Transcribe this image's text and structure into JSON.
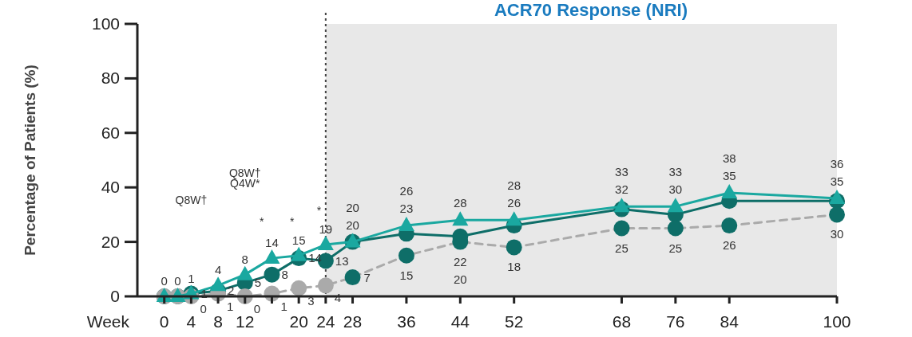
{
  "chart_data": {
    "type": "line",
    "title": "ACR70 Response (NRI)",
    "xlabel": "Week",
    "ylabel": "Percentage of Patients (%)",
    "x": [
      0,
      2,
      4,
      8,
      12,
      16,
      20,
      24,
      28,
      36,
      44,
      52,
      68,
      76,
      84,
      100
    ],
    "xlim": [
      -4,
      100
    ],
    "xticks": [
      0,
      4,
      8,
      12,
      {
        "value": 16,
        "label": null
      },
      20,
      24,
      28,
      36,
      44,
      52,
      68,
      76,
      84,
      100
    ],
    "ylim": [
      0,
      100
    ],
    "yticks": [
      0,
      20,
      40,
      60,
      80,
      100
    ],
    "grid": false,
    "series": [
      {
        "color": "#1aa8a0",
        "marker": "triangle",
        "line_style": "solid",
        "values": [
          0,
          0,
          1,
          4,
          8,
          14,
          15,
          19,
          20,
          26,
          28,
          28,
          33,
          33,
          38,
          36
        ],
        "value_labels": [
          "0",
          "0",
          "1",
          "4",
          "8",
          "14",
          "15",
          "19",
          "20",
          "26",
          "28",
          "28",
          "33",
          "33",
          "38",
          "36"
        ]
      },
      {
        "color": "#0e6e68",
        "marker": "circle",
        "line_style": "solid",
        "values": [
          0,
          0,
          1,
          2,
          5,
          8,
          14,
          13,
          20,
          23,
          22,
          26,
          32,
          30,
          35,
          35
        ],
        "value_labels": [
          null,
          null,
          "1",
          "2",
          "5",
          "8",
          "14",
          "13",
          "20",
          "23",
          "22",
          "26",
          "32",
          "30",
          "35",
          "35"
        ]
      },
      {
        "color": "#aaaaaa",
        "colors": [
          "#aaaaaa",
          "#aaaaaa",
          "#aaaaaa",
          "#aaaaaa",
          "#aaaaaa",
          "#aaaaaa",
          "#aaaaaa",
          "#aaaaaa",
          "#0e6e68",
          "#0e6e68",
          "#0e6e68",
          "#0e6e68",
          "#0e6e68",
          "#0e6e68",
          "#0e6e68",
          "#0e6e68"
        ],
        "marker": "circle",
        "line_style": "dashed",
        "values": [
          0,
          0,
          0,
          1,
          0,
          1,
          3,
          4,
          7,
          15,
          20,
          18,
          25,
          25,
          26,
          30
        ],
        "value_labels": [
          null,
          null,
          "0",
          "1",
          "0",
          "1",
          "3",
          "4",
          "7",
          "15",
          "20",
          "18",
          "25",
          "25",
          "26",
          "30"
        ]
      }
    ],
    "bands": [
      {
        "axis": "x",
        "from": 24,
        "to": 100,
        "color": "#e8e8e8"
      }
    ],
    "ref_lines": [
      {
        "axis": "x",
        "value": 24,
        "line_style": "dotted",
        "color": "#444444"
      }
    ],
    "annotations": [
      "Q8W†",
      "Q8W†",
      "Q4W*",
      "*",
      "*",
      "*"
    ]
  }
}
